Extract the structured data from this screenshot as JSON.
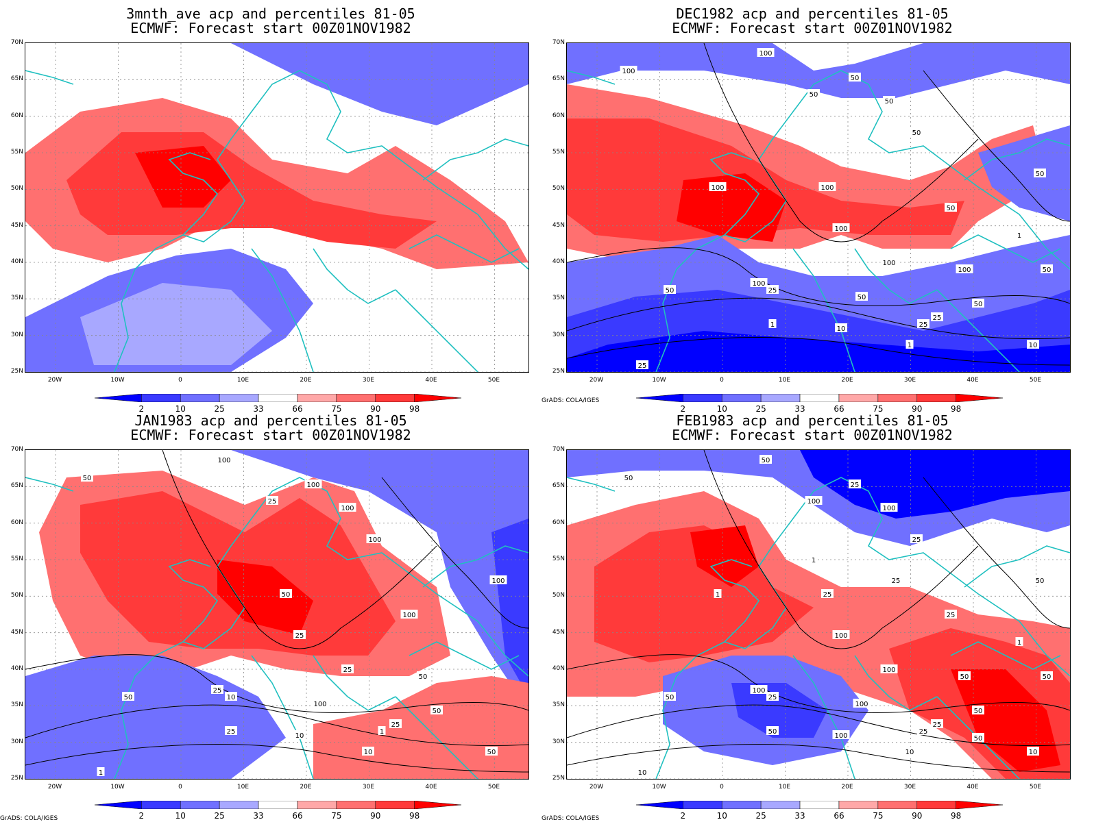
{
  "panels": [
    {
      "title": "3mnth_ave acp and percentiles 81-05",
      "subtitle": "ECMWF: Forecast start 00Z01NOV1982",
      "credit": "",
      "contour_labels": []
    },
    {
      "title": "DEC1982 acp and percentiles 81-05",
      "subtitle": "ECMWF: Forecast start 00Z01NOV1982",
      "credit": "GrADS: COLA/IGES",
      "contour_labels": [
        "100",
        "100",
        "50",
        "50",
        "50",
        "50",
        "100",
        "50",
        "50",
        "100",
        "100",
        "100",
        "50",
        "100",
        "25",
        "50",
        "25",
        "50",
        "1",
        "10",
        "25",
        "1",
        "10",
        "25",
        "50",
        "1",
        "100"
      ]
    },
    {
      "title": "JAN1983 acp and percentiles 81-05",
      "subtitle": "ECMWF: Forecast start 00Z01NOV1982",
      "credit": "GrADS: COLA/IGES",
      "contour_labels": [
        "50",
        "100",
        "100",
        "25",
        "100",
        "100",
        "50",
        "100",
        "100",
        "25",
        "25",
        "50",
        "50",
        "25",
        "10",
        "100",
        "25",
        "50",
        "25",
        "10",
        "1",
        "10",
        "50",
        "1"
      ]
    },
    {
      "title": "FEB1983 acp and percentiles 81-05",
      "subtitle": "ECMWF: Forecast start 00Z01NOV1982",
      "credit": "GrADS: COLA/IGES",
      "contour_labels": [
        "50",
        "50",
        "25",
        "100",
        "100",
        "25",
        "25",
        "25",
        "50",
        "100",
        "100",
        "50",
        "50",
        "100",
        "25",
        "100",
        "25",
        "50",
        "50",
        "100",
        "25",
        "10",
        "10",
        "10",
        "50",
        "1",
        "1",
        "1",
        "25",
        "50"
      ]
    }
  ],
  "lat_labels": [
    "70N",
    "65N",
    "60N",
    "55N",
    "50N",
    "45N",
    "40N",
    "35N",
    "30N",
    "25N"
  ],
  "lon_labels": [
    "20W",
    "10W",
    "0",
    "10E",
    "20E",
    "30E",
    "40E",
    "50E"
  ],
  "colorbar": {
    "labels": [
      "2",
      "10",
      "25",
      "33",
      "66",
      "75",
      "90",
      "98"
    ],
    "colors": [
      "#0000ff",
      "#3a3aff",
      "#7070ff",
      "#a8a8ff",
      "#ffffff",
      "#ffa8a8",
      "#ff7070",
      "#ff3a3a",
      "#ff0000"
    ]
  },
  "colors": {
    "coast": "#20c0c0",
    "contour": "#000000",
    "grid": "#888888"
  }
}
